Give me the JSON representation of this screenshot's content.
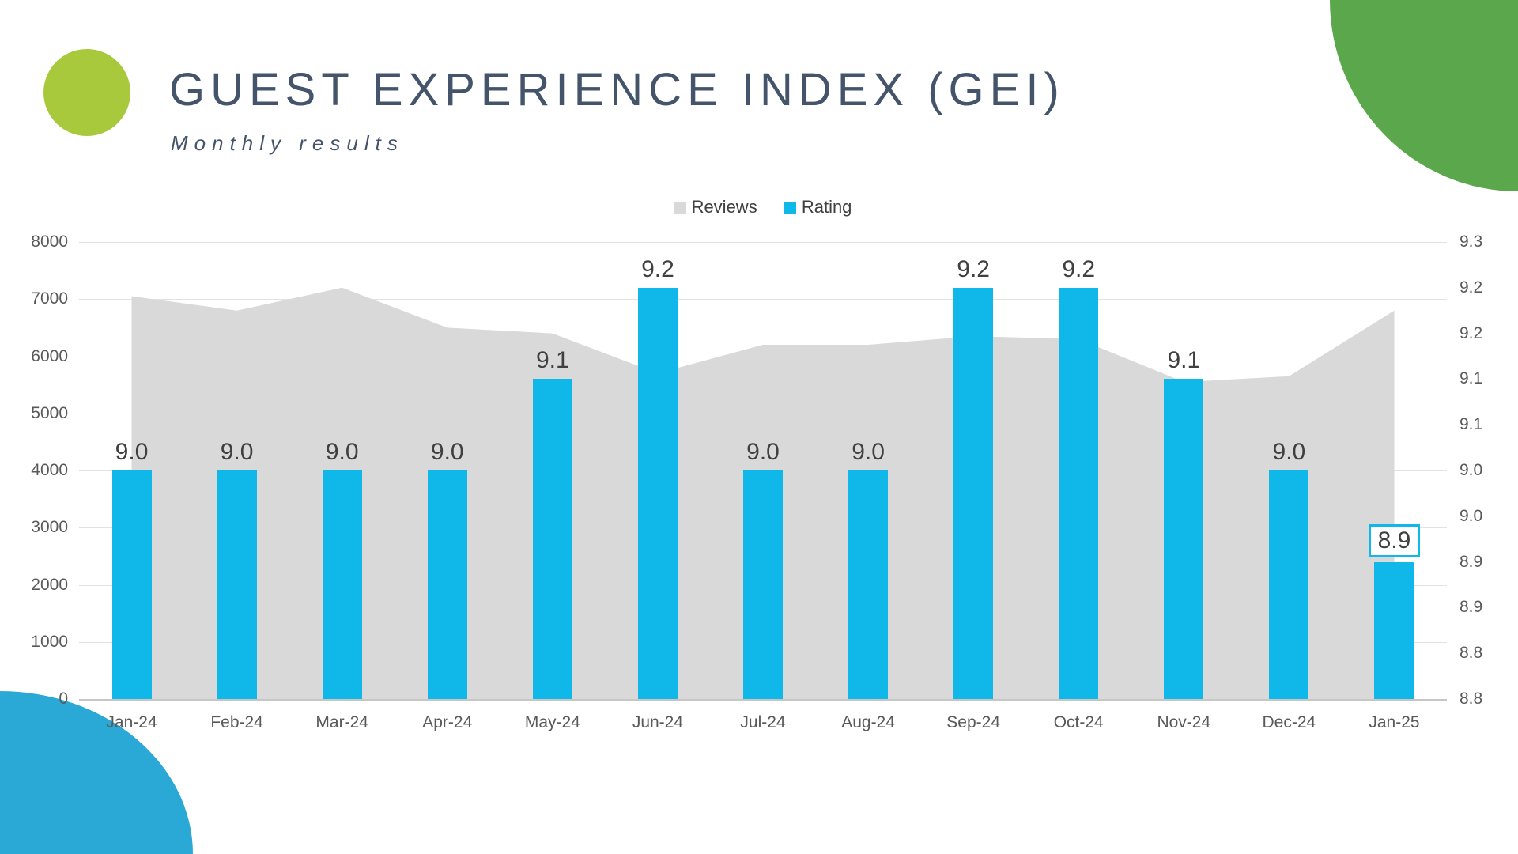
{
  "header": {
    "title": "GUEST EXPERIENCE INDEX (GEI)",
    "subtitle": "Monthly results"
  },
  "decorations": {
    "logo_circle_color": "#A9C93D",
    "top_right_shape_color": "#5BA84C",
    "bottom_left_shape_color": "#2BA9D6"
  },
  "legend": [
    {
      "label": "Reviews",
      "color": "#D9D9D9"
    },
    {
      "label": "Rating",
      "color": "#0FB8E8"
    }
  ],
  "chart_data": {
    "type": "combo",
    "legend_position": "top",
    "grid": "horizontal",
    "categories": [
      "Jan-24",
      "Feb-24",
      "Mar-24",
      "Apr-24",
      "May-24",
      "Jun-24",
      "Jul-24",
      "Aug-24",
      "Sep-24",
      "Oct-24",
      "Nov-24",
      "Dec-24",
      "Jan-25"
    ],
    "series": [
      {
        "name": "Reviews",
        "type": "area",
        "axis": "left",
        "color": "#D9D9D9",
        "values": [
          7050,
          6800,
          7200,
          6500,
          6400,
          5700,
          6200,
          6200,
          6350,
          6300,
          5550,
          5650,
          6800
        ]
      },
      {
        "name": "Rating",
        "type": "bar",
        "axis": "right",
        "color": "#0FB8E8",
        "values": [
          9.05,
          9.05,
          9.05,
          9.05,
          9.15,
          9.25,
          9.05,
          9.05,
          9.25,
          9.25,
          9.15,
          9.05,
          8.95
        ],
        "labels": [
          "9.0",
          "9.0",
          "9.0",
          "9.0",
          "9.1",
          "9.2",
          "9.0",
          "9.0",
          "9.2",
          "9.2",
          "9.1",
          "9.0",
          "8.9"
        ],
        "highlighted_index": 12,
        "highlighted_label": "8.9"
      }
    ],
    "left_axis": {
      "min": 0,
      "max": 8000,
      "step": 1000,
      "ticks": [
        "8000",
        "7000",
        "6000",
        "5000",
        "4000",
        "3000",
        "2000",
        "1000",
        "0"
      ]
    },
    "right_axis": {
      "min": 8.8,
      "max": 9.3,
      "step": 0.05,
      "ticks": [
        "9.3",
        "9.2",
        "9.2",
        "9.1",
        "9.1",
        "9.0",
        "9.0",
        "8.9",
        "8.9",
        "8.8",
        "8.8"
      ]
    }
  }
}
